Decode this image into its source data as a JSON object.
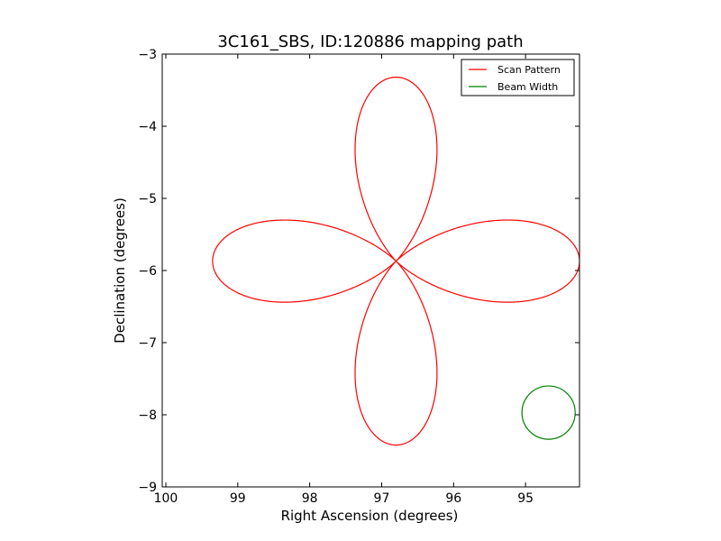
{
  "chart_data": {
    "type": "line",
    "title": "3C161_SBS, ID:120886 mapping path",
    "xlabel": "Right Ascension (degrees)",
    "ylabel": "Declination (degrees)",
    "xlim": [
      100.05,
      94.25
    ],
    "ylim": [
      -9,
      -3
    ],
    "x_inverted": true,
    "xticks": [
      100,
      99,
      98,
      97,
      96,
      95
    ],
    "xtick_labels": [
      "100",
      "99",
      "98",
      "97",
      "96",
      "95"
    ],
    "yticks": [
      -3,
      -4,
      -5,
      -6,
      -7,
      -8,
      -9
    ],
    "ytick_labels": [
      "−3",
      "−4",
      "−5",
      "−6",
      "−7",
      "−8",
      "−9"
    ],
    "legend_position": "top-right",
    "grid": false,
    "series": [
      {
        "name": "Scan Pattern",
        "color": "#ff0000",
        "style": "line",
        "center": [
          96.8,
          -5.87
        ],
        "petal_length": 2.55,
        "petal_half_width": 0.58,
        "start_angle_deg": -8.0,
        "turns": 2.0
      },
      {
        "name": "Beam Width",
        "color": "#008000",
        "style": "circle",
        "center": [
          94.68,
          -7.97
        ],
        "radius_deg": 0.37
      }
    ]
  }
}
